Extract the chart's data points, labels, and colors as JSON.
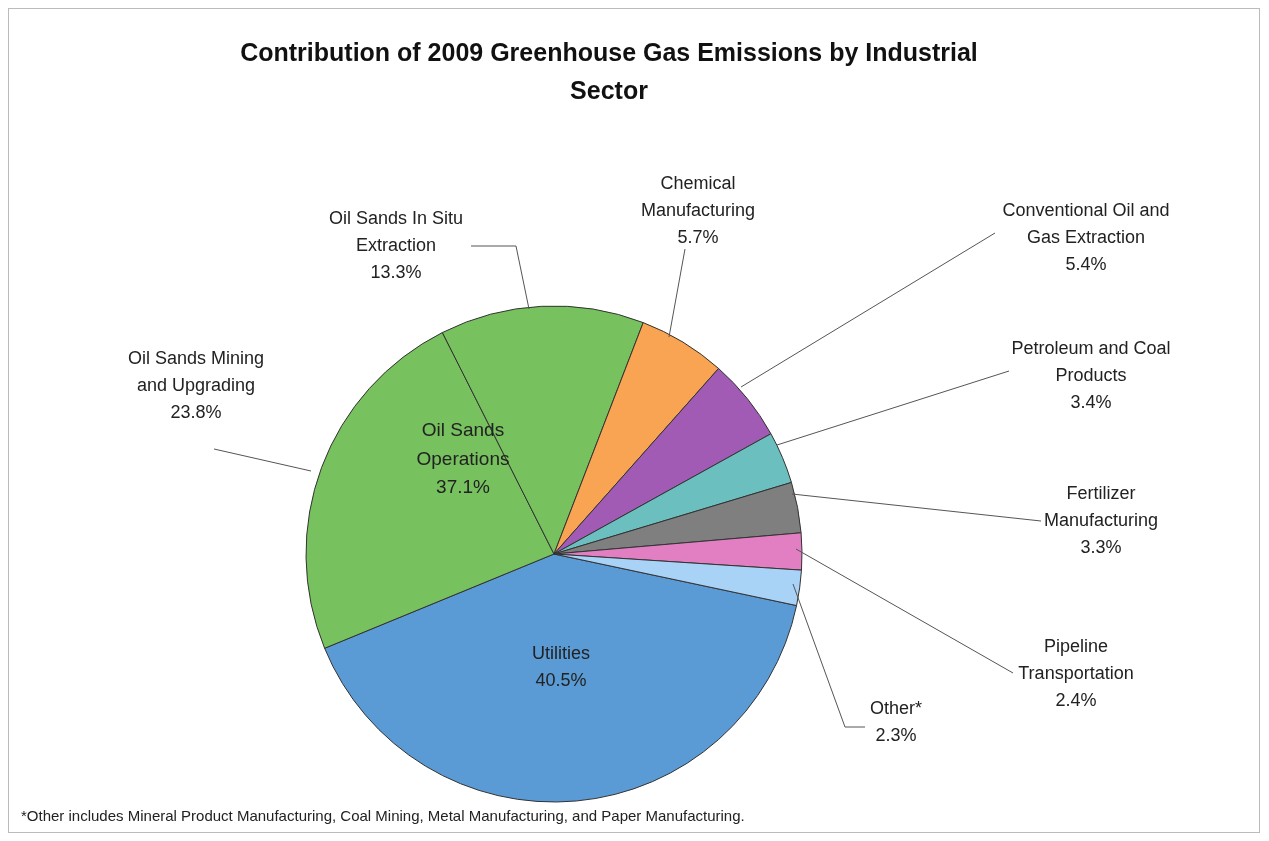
{
  "chart_data": {
    "type": "pie",
    "title": "Contribution of 2009 Greenhouse Gas Emissions by Industrial Sector",
    "categories": [
      "Utilities",
      "Oil Sands Mining and Upgrading",
      "Oil Sands In Situ Extraction",
      "Chemical Manufacturing",
      "Conventional Oil and Gas Extraction",
      "Petroleum and Coal Products",
      "Fertilizer Manufacturing",
      "Pipeline Transportation",
      "Other*"
    ],
    "values": [
      40.5,
      23.8,
      13.3,
      5.7,
      5.4,
      3.4,
      3.3,
      2.4,
      2.3
    ],
    "value_labels": [
      "40.5%",
      "23.8%",
      "13.3%",
      "5.7%",
      "5.4%",
      "3.4%",
      "3.3%",
      "2.4%",
      "2.3%"
    ],
    "colors": [
      "#5b9bd5",
      "#77c15f",
      "#77c15f",
      "#f8a452",
      "#a15bb4",
      "#6cbfbf",
      "#7f7f7f",
      "#e27fc3",
      "#a9d2f7"
    ],
    "annotations": [
      "Oil Sands Operations 37.1%",
      "*Other includes Mineral Product Manufacturing, Coal Mining, Metal Manufacturing, and Paper Manufacturing."
    ],
    "legend": false
  }
}
